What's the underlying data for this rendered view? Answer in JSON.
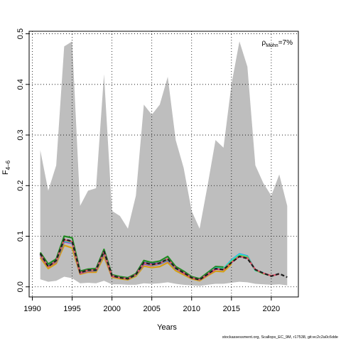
{
  "chart_data": {
    "type": "line",
    "xlabel": "Years",
    "ylabel": "F",
    "ylabel_sub": "4–6",
    "annotation_rho": "ρ",
    "annotation_sub": "Mohn",
    "annotation_value": "=7%",
    "footer": "stockassessment.org, Scallops_EC_9M, r17538, git:ec2c2a0c6dde",
    "xlim": [
      1989.6,
      2023.4
    ],
    "ylim": [
      -0.02,
      0.505
    ],
    "x_ticks": [
      1990,
      1995,
      2000,
      2005,
      2010,
      2015,
      2020
    ],
    "y_ticks": [
      0.0,
      0.1,
      0.2,
      0.3,
      0.4,
      0.5
    ],
    "y_tick_labels": [
      "0.0",
      "0.1",
      "0.2",
      "0.3",
      "0.4",
      "0.5"
    ],
    "grid": true,
    "confidence_band": {
      "x": [
        1991,
        1992,
        1993,
        1994,
        1995,
        1996,
        1997,
        1998,
        1999,
        2000,
        2001,
        2002,
        2003,
        2004,
        2005,
        2006,
        2007,
        2008,
        2009,
        2010,
        2011,
        2012,
        2013,
        2014,
        2015,
        2016,
        2017,
        2018,
        2019,
        2020,
        2021,
        2022
      ],
      "upper": [
        0.27,
        0.19,
        0.24,
        0.475,
        0.485,
        0.16,
        0.19,
        0.195,
        0.42,
        0.15,
        0.14,
        0.115,
        0.18,
        0.36,
        0.34,
        0.36,
        0.415,
        0.29,
        0.235,
        0.15,
        0.115,
        0.2,
        0.29,
        0.275,
        0.4,
        0.485,
        0.435,
        0.24,
        0.205,
        0.18,
        0.222,
        0.16
      ],
      "lower": [
        0.015,
        0.01,
        0.012,
        0.02,
        0.017,
        0.007,
        0.008,
        0.007,
        0.012,
        0.005,
        0.005,
        0.004,
        0.004,
        0.007,
        0.006,
        0.007,
        0.009,
        0.006,
        0.004,
        0.003,
        0.002,
        0.004,
        0.006,
        0.006,
        0.008,
        0.01,
        0.009,
        0.006,
        0.005,
        0.004,
        0.005,
        0.003
      ]
    },
    "series": [
      {
        "color": "#1f1f1f",
        "x": [
          1991,
          1992,
          1993,
          1994,
          1995,
          1996,
          1997,
          1998,
          1999,
          2000,
          2001,
          2002,
          2003,
          2004,
          2005,
          2006,
          2007,
          2008,
          2009,
          2010,
          2011,
          2012,
          2013,
          2014,
          2015,
          2016,
          2017,
          2018,
          2019,
          2020,
          2021,
          2022
        ],
        "values": [
          0.066,
          0.04,
          0.052,
          0.094,
          0.09,
          0.028,
          0.033,
          0.033,
          0.07,
          0.022,
          0.018,
          0.016,
          0.024,
          0.048,
          0.044,
          0.047,
          0.055,
          0.037,
          0.028,
          0.018,
          0.014,
          0.025,
          0.036,
          0.034,
          0.048,
          0.06,
          0.056,
          0.034,
          0.027,
          0.021,
          0.026,
          0.019
        ],
        "dash": "5,3"
      },
      {
        "color": "#df536b",
        "x": [
          1991,
          1992,
          1993,
          1994,
          1995,
          1996,
          1997,
          1998,
          1999,
          2000,
          2001,
          2002,
          2003,
          2004,
          2005,
          2006,
          2007,
          2008,
          2009,
          2010,
          2011,
          2012,
          2013,
          2014,
          2015,
          2016,
          2017,
          2018,
          2019,
          2020,
          2021
        ],
        "values": [
          0.065,
          0.04,
          0.051,
          0.093,
          0.089,
          0.028,
          0.033,
          0.033,
          0.069,
          0.022,
          0.018,
          0.016,
          0.024,
          0.047,
          0.044,
          0.046,
          0.055,
          0.037,
          0.028,
          0.018,
          0.014,
          0.025,
          0.036,
          0.034,
          0.048,
          0.06,
          0.057,
          0.034,
          0.027,
          0.022,
          0.025
        ]
      },
      {
        "color": "#61d04f",
        "x": [
          1991,
          1992,
          1993,
          1994,
          1995,
          1996,
          1997,
          1998,
          1999,
          2000,
          2001,
          2002,
          2003,
          2004,
          2005,
          2006,
          2007,
          2008,
          2009,
          2010,
          2011,
          2012,
          2013,
          2014,
          2015,
          2016,
          2017,
          2018,
          2019,
          2020
        ],
        "values": [
          0.064,
          0.04,
          0.05,
          0.092,
          0.088,
          0.028,
          0.032,
          0.033,
          0.068,
          0.022,
          0.018,
          0.016,
          0.023,
          0.047,
          0.043,
          0.046,
          0.054,
          0.037,
          0.028,
          0.018,
          0.014,
          0.025,
          0.036,
          0.035,
          0.05,
          0.062,
          0.059,
          0.033,
          0.026,
          0.022
        ]
      },
      {
        "color": "#28e2e5",
        "x": [
          1991,
          1992,
          1993,
          1994,
          1995,
          1996,
          1997,
          1998,
          1999,
          2000,
          2001,
          2002,
          2003,
          2004,
          2005,
          2006,
          2007,
          2008,
          2009,
          2010,
          2011,
          2012,
          2013,
          2014,
          2015,
          2016,
          2017,
          2018,
          2019
        ],
        "values": [
          0.064,
          0.041,
          0.05,
          0.091,
          0.088,
          0.028,
          0.032,
          0.033,
          0.068,
          0.022,
          0.018,
          0.016,
          0.023,
          0.047,
          0.043,
          0.046,
          0.054,
          0.037,
          0.028,
          0.018,
          0.014,
          0.025,
          0.037,
          0.036,
          0.052,
          0.064,
          0.06,
          0.032,
          0.028
        ]
      },
      {
        "color": "#2297e6",
        "x": [
          1991,
          1992,
          1993,
          1994,
          1995,
          1996,
          1997,
          1998,
          1999,
          2000,
          2001,
          2002,
          2003,
          2004,
          2005,
          2006,
          2007,
          2008,
          2009,
          2010,
          2011,
          2012,
          2013,
          2014,
          2015,
          2016,
          2017,
          2018
        ],
        "values": [
          0.063,
          0.041,
          0.05,
          0.09,
          0.087,
          0.028,
          0.032,
          0.032,
          0.067,
          0.022,
          0.018,
          0.016,
          0.023,
          0.046,
          0.043,
          0.045,
          0.053,
          0.036,
          0.028,
          0.018,
          0.014,
          0.025,
          0.037,
          0.036,
          0.053,
          0.065,
          0.061,
          0.033
        ]
      },
      {
        "color": "#cd0bbc",
        "x": [
          1991,
          1992,
          1993,
          1994,
          1995,
          1996,
          1997,
          1998,
          1999,
          2000,
          2001,
          2002,
          2003,
          2004,
          2005,
          2006,
          2007,
          2008,
          2009,
          2010,
          2011,
          2012,
          2013,
          2014,
          2015,
          2016,
          2017
        ],
        "values": [
          0.062,
          0.04,
          0.049,
          0.089,
          0.086,
          0.027,
          0.031,
          0.032,
          0.066,
          0.021,
          0.018,
          0.016,
          0.023,
          0.045,
          0.042,
          0.045,
          0.052,
          0.036,
          0.027,
          0.018,
          0.014,
          0.024,
          0.035,
          0.034,
          0.05,
          0.062,
          0.058
        ]
      },
      {
        "color": "#3b3bd6",
        "x": [
          1991,
          1992,
          1993,
          1994,
          1995,
          1996,
          1997,
          1998,
          1999,
          2000,
          2001,
          2002,
          2003,
          2004,
          2005,
          2006,
          2007,
          2008,
          2009,
          2010,
          2011,
          2012,
          2013,
          2014,
          2015,
          2016
        ],
        "values": [
          0.063,
          0.041,
          0.051,
          0.092,
          0.089,
          0.028,
          0.033,
          0.033,
          0.069,
          0.022,
          0.018,
          0.016,
          0.024,
          0.048,
          0.045,
          0.047,
          0.055,
          0.037,
          0.028,
          0.018,
          0.014,
          0.025,
          0.036,
          0.035,
          0.05,
          0.06
        ]
      },
      {
        "color": "#d4a017",
        "x": [
          1991,
          1992,
          1993,
          1994,
          1995,
          1996,
          1997,
          1998,
          1999,
          2000,
          2001,
          2002,
          2003,
          2004,
          2005,
          2006,
          2007,
          2008,
          2009,
          2010,
          2011,
          2012,
          2013,
          2014,
          2015
        ],
        "values": [
          0.058,
          0.036,
          0.046,
          0.082,
          0.077,
          0.025,
          0.029,
          0.029,
          0.06,
          0.019,
          0.016,
          0.014,
          0.021,
          0.041,
          0.038,
          0.04,
          0.048,
          0.032,
          0.024,
          0.016,
          0.012,
          0.022,
          0.031,
          0.03,
          0.045
        ]
      },
      {
        "color": "#228b22",
        "x": [
          1991,
          1992,
          1993,
          1994,
          1995,
          1996,
          1997,
          1998,
          1999,
          2000,
          2001,
          2002,
          2003,
          2004,
          2005,
          2006,
          2007,
          2008,
          2009,
          2010,
          2011,
          2012,
          2013,
          2014
        ],
        "values": [
          0.068,
          0.045,
          0.055,
          0.1,
          0.097,
          0.031,
          0.035,
          0.036,
          0.074,
          0.024,
          0.02,
          0.018,
          0.026,
          0.052,
          0.048,
          0.051,
          0.06,
          0.04,
          0.031,
          0.02,
          0.016,
          0.028,
          0.04,
          0.039
        ]
      }
    ]
  }
}
